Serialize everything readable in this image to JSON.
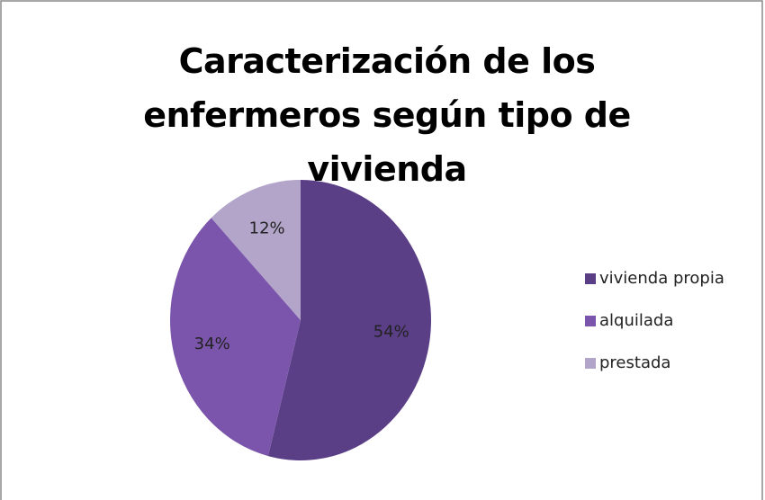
{
  "chart_data": {
    "type": "pie",
    "title": "Caracterización de los enfermeros según tipo de vivienda",
    "categories": [
      "vivienda propia",
      "alquilada",
      "prestada"
    ],
    "values": [
      54,
      34,
      12
    ],
    "value_labels": [
      "54%",
      "34%",
      "12%"
    ],
    "colors": [
      "#5a3e86",
      "#7b55ab",
      "#b2a5c9"
    ],
    "legend": "right"
  }
}
